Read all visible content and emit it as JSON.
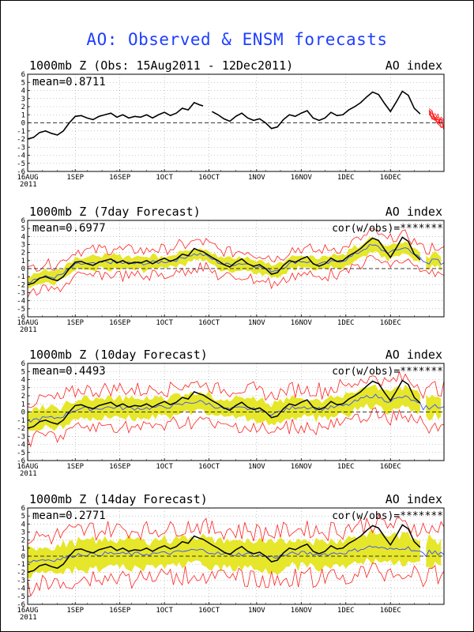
{
  "title": "AO: Observed & ENSM forecasts",
  "colors": {
    "title": "#1f3fff",
    "obs": "#000000",
    "spread": "#e6e62a",
    "envelope": "#ff2020",
    "ensmean": "#3050ff",
    "grid": "#999999"
  },
  "x_ticks": [
    "16AUG",
    "1SEP",
    "16SEP",
    "1OCT",
    "16OCT",
    "1NOV",
    "16NOV",
    "1DEC",
    "16DEC"
  ],
  "x_year": "2011",
  "y_ticks": [
    "6",
    "5",
    "4",
    "3",
    "2",
    "1",
    "0",
    "-1",
    "-2",
    "-3",
    "-4",
    "-5",
    "-6"
  ],
  "chart_data": [
    {
      "type": "line",
      "title": "1000mb Z (Obs: 15Aug2011 - 12Dec2011)",
      "right_label": "AO index",
      "stat_label": "mean=0.8711",
      "ylim": [
        -6,
        6
      ],
      "xlim_days": [
        0,
        132
      ],
      "series": [
        {
          "name": "observed",
          "points": [
            [
              0,
              -2
            ],
            [
              2,
              -1.8
            ],
            [
              4,
              -1.2
            ],
            [
              6,
              -1
            ],
            [
              8,
              -1.3
            ],
            [
              10,
              -1.5
            ],
            [
              12,
              -1
            ],
            [
              14,
              0
            ],
            [
              16,
              0.8
            ],
            [
              18,
              0.9
            ],
            [
              20,
              0.6
            ],
            [
              22,
              0.4
            ],
            [
              24,
              0.8
            ],
            [
              26,
              1
            ],
            [
              28,
              1.2
            ],
            [
              30,
              0.7
            ],
            [
              32,
              1
            ],
            [
              34,
              0.6
            ],
            [
              36,
              0.8
            ],
            [
              38,
              0.7
            ],
            [
              40,
              1
            ],
            [
              42,
              0.6
            ],
            [
              44,
              1
            ],
            [
              46,
              1.3
            ],
            [
              48,
              0.9
            ],
            [
              50,
              1.2
            ],
            [
              52,
              1.8
            ],
            [
              54,
              1.6
            ],
            [
              56,
              2.5
            ],
            [
              58,
              2.2
            ],
            [
              59,
              2.1
            ],
            [
              null,
              null
            ],
            [
              62,
              1.4
            ],
            [
              64,
              1
            ],
            [
              66,
              0.5
            ],
            [
              68,
              0.2
            ],
            [
              70,
              0.8
            ],
            [
              72,
              1.2
            ],
            [
              74,
              0.6
            ],
            [
              76,
              0.3
            ],
            [
              78,
              0.5
            ],
            [
              80,
              0
            ],
            [
              82,
              -0.7
            ],
            [
              84,
              -0.5
            ],
            [
              86,
              0.4
            ],
            [
              88,
              1
            ],
            [
              90,
              0.8
            ],
            [
              92,
              1.2
            ],
            [
              94,
              1.5
            ],
            [
              96,
              0.6
            ],
            [
              98,
              0.3
            ],
            [
              100,
              0.6
            ],
            [
              102,
              1.3
            ],
            [
              104,
              0.9
            ],
            [
              106,
              1
            ],
            [
              108,
              1.6
            ],
            [
              110,
              2
            ],
            [
              112,
              2.5
            ],
            [
              114,
              3.2
            ],
            [
              116,
              3.8
            ],
            [
              118,
              3.5
            ],
            [
              120,
              2.4
            ],
            [
              122,
              1.4
            ],
            [
              124,
              2.6
            ],
            [
              126,
              3.9
            ],
            [
              128,
              3.4
            ],
            [
              130,
              1.8
            ],
            [
              132,
              1.1
            ]
          ]
        }
      ],
      "ensemble_red": true
    },
    {
      "type": "area",
      "title": "1000mb Z (7day Forecast)",
      "right_label": "AO index",
      "stat_label": "mean=0.6977",
      "cor_label": "cor(w/obs)=*******",
      "ylim": [
        -6,
        6
      ],
      "xlim_days": [
        0,
        145
      ],
      "spread_width": 0.8,
      "envelope_width": 1.6,
      "forecast_extends_to": 145
    },
    {
      "type": "area",
      "title": "1000mb Z (10day Forecast)",
      "right_label": "AO index",
      "stat_label": "mean=0.4493",
      "cor_label": "cor(w/obs)=*******",
      "ylim": [
        -6,
        6
      ],
      "xlim_days": [
        0,
        145
      ],
      "spread_width": 1.2,
      "envelope_width": 2.3,
      "forecast_extends_to": 148
    },
    {
      "type": "area",
      "title": "1000mb Z (14day Forecast)",
      "right_label": "AO index",
      "stat_label": "mean=0.2771",
      "cor_label": "cor(w/obs)=*******",
      "ylim": [
        -6,
        6
      ],
      "xlim_days": [
        0,
        145
      ],
      "spread_width": 1.7,
      "envelope_width": 3.0,
      "forecast_extends_to": 152
    }
  ]
}
